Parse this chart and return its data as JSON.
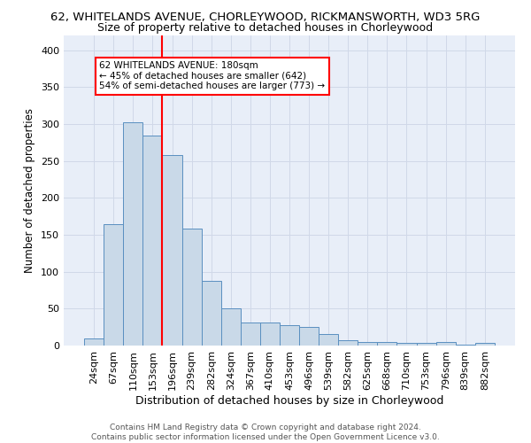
{
  "title_line1": "62, WHITELANDS AVENUE, CHORLEYWOOD, RICKMANSWORTH, WD3 5RG",
  "title_line2": "Size of property relative to detached houses in Chorleywood",
  "xlabel": "Distribution of detached houses by size in Chorleywood",
  "ylabel": "Number of detached properties",
  "bar_labels": [
    "24sqm",
    "67sqm",
    "110sqm",
    "153sqm",
    "196sqm",
    "239sqm",
    "282sqm",
    "324sqm",
    "367sqm",
    "410sqm",
    "453sqm",
    "496sqm",
    "539sqm",
    "582sqm",
    "625sqm",
    "668sqm",
    "710sqm",
    "753sqm",
    "796sqm",
    "839sqm",
    "882sqm"
  ],
  "bar_values": [
    10,
    165,
    303,
    284,
    258,
    159,
    88,
    50,
    31,
    31,
    28,
    25,
    16,
    7,
    5,
    5,
    4,
    4,
    5,
    1,
    4
  ],
  "bar_color": "#c9d9e8",
  "bar_edge_color": "#5a8fc0",
  "red_line_index": 3.5,
  "annotation_text": "62 WHITELANDS AVENUE: 180sqm\n← 45% of detached houses are smaller (642)\n54% of semi-detached houses are larger (773) →",
  "annotation_box_color": "white",
  "annotation_box_edge": "red",
  "ylim": [
    0,
    420
  ],
  "yticks": [
    0,
    50,
    100,
    150,
    200,
    250,
    300,
    350,
    400
  ],
  "grid_color": "#d0d8e8",
  "bg_color": "#e8eef8",
  "footer_text": "Contains HM Land Registry data © Crown copyright and database right 2024.\nContains public sector information licensed under the Open Government Licence v3.0.",
  "title_fontsize": 9.5,
  "subtitle_fontsize": 9
}
